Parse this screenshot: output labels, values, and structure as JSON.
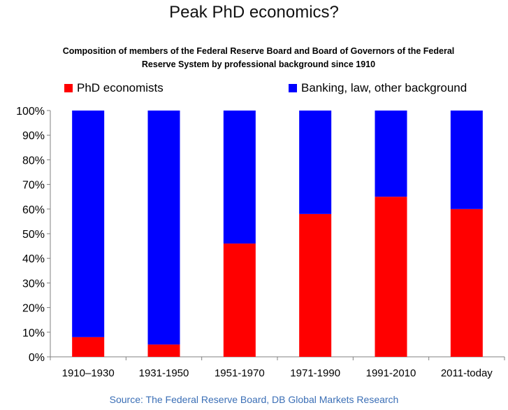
{
  "chart_data": {
    "type": "bar",
    "stacked": true,
    "title": "Peak PhD economics?",
    "subtitle": "Composition of members of the Federal Reserve Board and Board of Governors of the Federal Reserve System by professional background since 1910",
    "source": "Source: The Federal Reserve Board, DB Global Markets Research",
    "categories": [
      "1910–1930",
      "1931-1950",
      "1951-1970",
      "1971-1990",
      "1991-2010",
      "2011-today"
    ],
    "series": [
      {
        "name": "PhD economists",
        "color": "#ff0000",
        "values": [
          8,
          5,
          46,
          58,
          65,
          60
        ]
      },
      {
        "name": "Banking, law, other background",
        "color": "#0000ff",
        "values": [
          92,
          95,
          54,
          42,
          35,
          40
        ]
      }
    ],
    "ylim": [
      0,
      100
    ],
    "yticks": [
      "0%",
      "10%",
      "20%",
      "30%",
      "40%",
      "50%",
      "60%",
      "70%",
      "80%",
      "90%",
      "100%"
    ],
    "grid": false,
    "legend_position": "top"
  }
}
